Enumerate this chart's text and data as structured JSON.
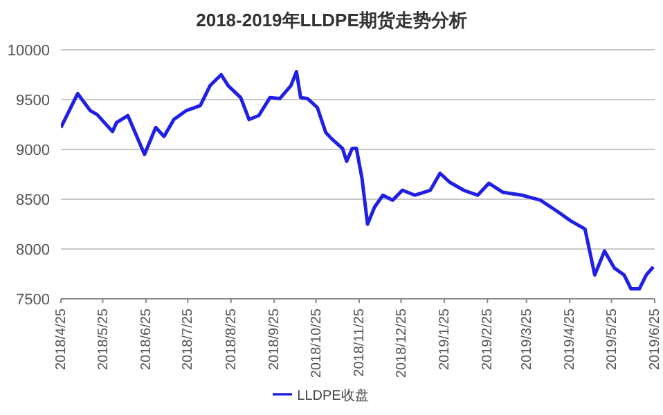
{
  "chart_data": {
    "type": "line",
    "title": "2018-2019年LLDPE期货走势分析",
    "x": [
      "2018-04-25",
      "2018-05-07",
      "2018-05-16",
      "2018-05-21",
      "2018-06-01",
      "2018-06-04",
      "2018-06-12",
      "2018-06-24",
      "2018-07-02",
      "2018-07-08",
      "2018-07-15",
      "2018-07-24",
      "2018-08-03",
      "2018-08-10",
      "2018-08-18",
      "2018-08-23",
      "2018-09-01",
      "2018-09-07",
      "2018-09-14",
      "2018-09-22",
      "2018-09-29",
      "2018-10-07",
      "2018-10-11",
      "2018-10-14",
      "2018-10-19",
      "2018-10-26",
      "2018-11-01",
      "2018-11-05",
      "2018-11-13",
      "2018-11-16",
      "2018-11-20",
      "2018-11-23",
      "2018-11-27",
      "2018-12-01",
      "2018-12-06",
      "2018-12-12",
      "2018-12-19",
      "2018-12-26",
      "2019-01-04",
      "2019-01-15",
      "2019-01-22",
      "2019-01-29",
      "2019-02-08",
      "2019-02-18",
      "2019-02-26",
      "2019-03-08",
      "2019-03-22",
      "2019-04-04",
      "2019-04-17",
      "2019-04-26",
      "2019-05-06",
      "2019-05-13",
      "2019-05-20",
      "2019-05-27",
      "2019-06-03",
      "2019-06-08",
      "2019-06-14",
      "2019-06-19",
      "2019-06-24"
    ],
    "series": [
      {
        "name": "LLDPE收盘",
        "color": "#1f1fe6",
        "values": [
          9220,
          9560,
          9390,
          9350,
          9180,
          9270,
          9340,
          8950,
          9220,
          9130,
          9300,
          9390,
          9440,
          9640,
          9750,
          9640,
          9520,
          9300,
          9340,
          9520,
          9510,
          9640,
          9780,
          9520,
          9510,
          9420,
          9170,
          9110,
          9010,
          8880,
          9010,
          9010,
          8710,
          8250,
          8420,
          8540,
          8490,
          8590,
          8540,
          8590,
          8760,
          8670,
          8590,
          8540,
          8660,
          8570,
          8540,
          8490,
          8370,
          8280,
          8200,
          7740,
          7980,
          7810,
          7740,
          7600,
          7600,
          7740,
          7820
        ]
      }
    ],
    "xlim": [
      "2018-04-25",
      "2019-06-25"
    ],
    "xticks": [
      {
        "value": "2018-04-25",
        "label": "2018/4/25"
      },
      {
        "value": "2018-05-25",
        "label": "2018/5/25"
      },
      {
        "value": "2018-06-25",
        "label": "2018/6/25"
      },
      {
        "value": "2018-07-25",
        "label": "2018/7/25"
      },
      {
        "value": "2018-08-25",
        "label": "2018/8/25"
      },
      {
        "value": "2018-09-25",
        "label": "2018/9/25"
      },
      {
        "value": "2018-10-25",
        "label": "2018/10/25"
      },
      {
        "value": "2018-11-25",
        "label": "2018/11/25"
      },
      {
        "value": "2018-12-25",
        "label": "2018/12/25"
      },
      {
        "value": "2019-01-25",
        "label": "2019/1/25"
      },
      {
        "value": "2019-02-25",
        "label": "2019/2/25"
      },
      {
        "value": "2019-03-25",
        "label": "2019/3/25"
      },
      {
        "value": "2019-04-25",
        "label": "2019/4/25"
      },
      {
        "value": "2019-05-25",
        "label": "2019/5/25"
      },
      {
        "value": "2019-06-25",
        "label": "2019/6/25"
      }
    ],
    "ylim": [
      7500,
      10000
    ],
    "yticks": [
      7500,
      8000,
      8500,
      9000,
      9500,
      10000
    ],
    "grid": "y",
    "legend": "bottom",
    "marker": "none",
    "line_style": "solid"
  }
}
